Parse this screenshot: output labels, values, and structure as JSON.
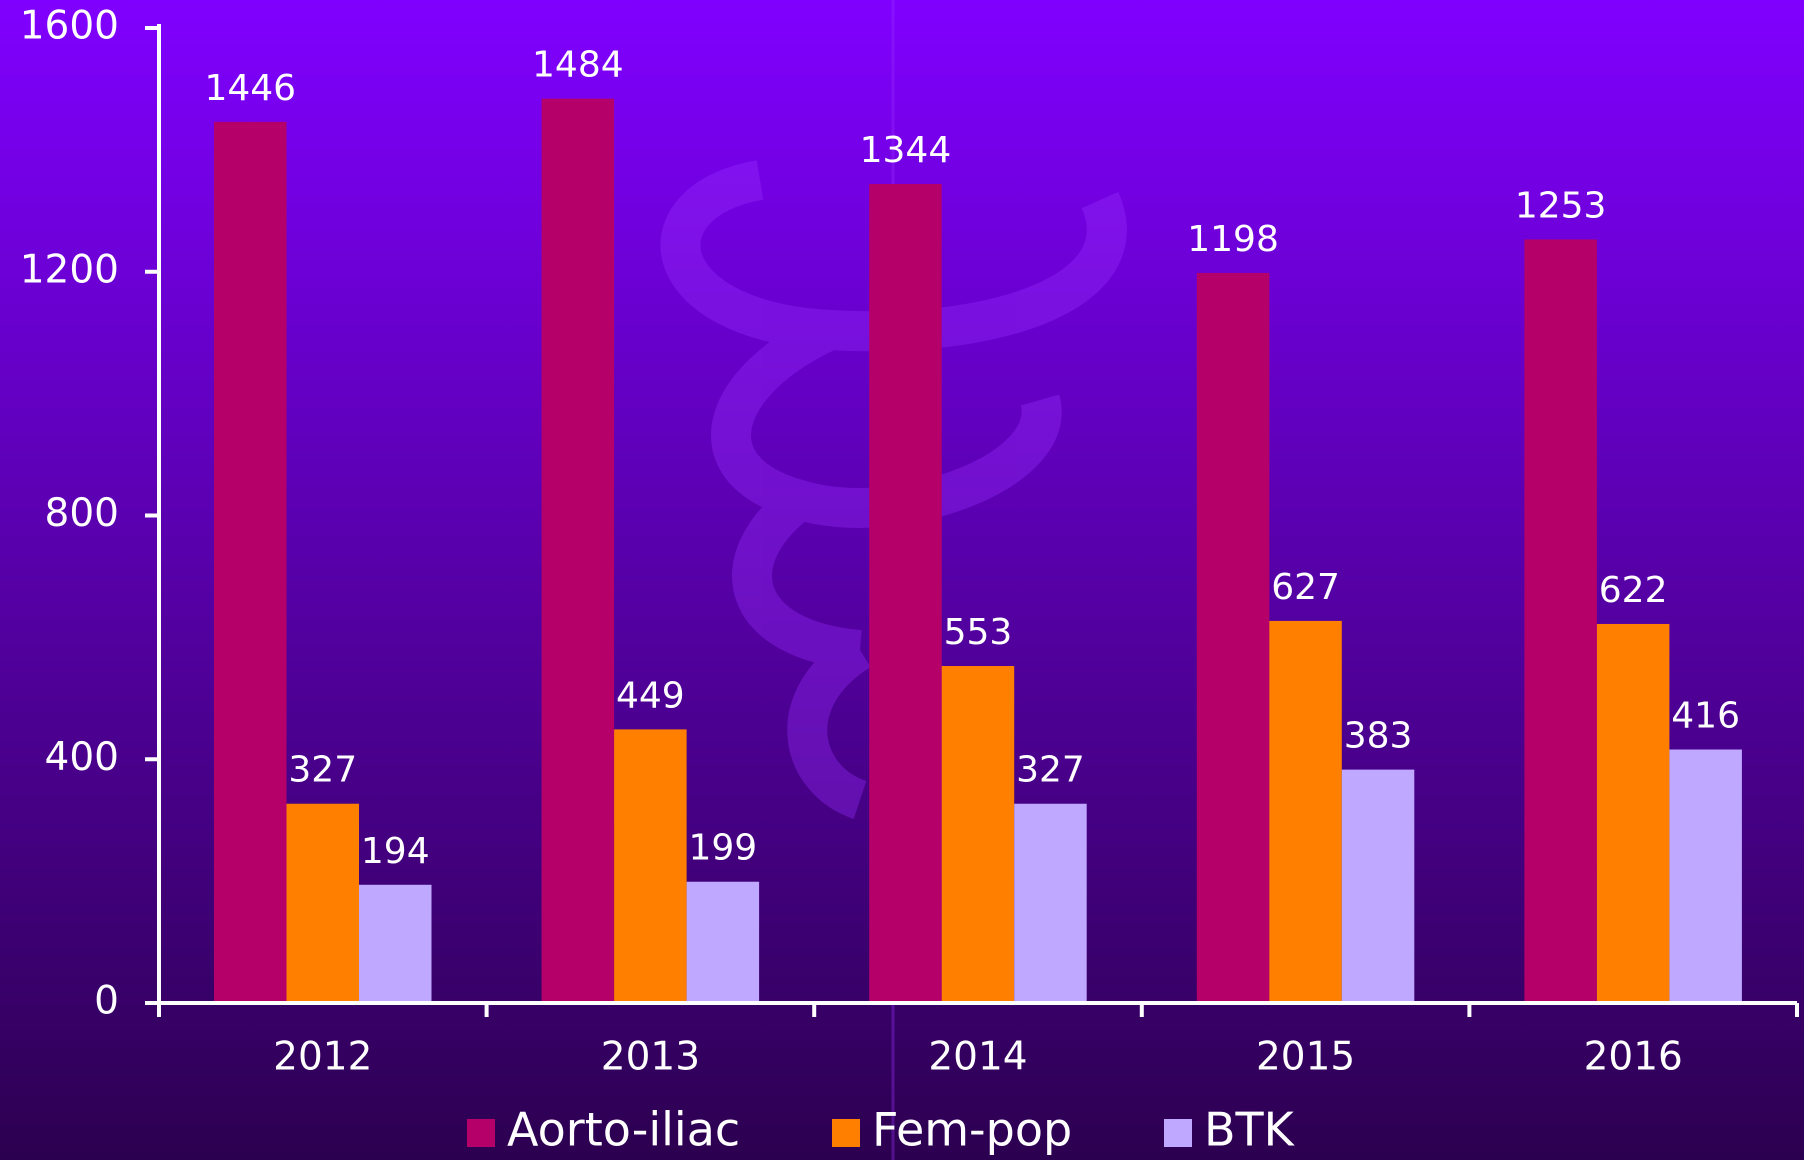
{
  "chart_data": {
    "type": "bar",
    "categories": [
      "2012",
      "2013",
      "2014",
      "2015",
      "2016"
    ],
    "series": [
      {
        "name": "Aorto-iliac",
        "color": "#b5006a",
        "values": [
          1446,
          1484,
          1344,
          1198,
          1253
        ]
      },
      {
        "name": "Fem-pop",
        "color": "#ff7f00",
        "values": [
          327,
          449,
          553,
          627,
          622
        ]
      },
      {
        "name": "BTK",
        "color": "#bfa8ff",
        "values": [
          194,
          199,
          327,
          383,
          416
        ]
      }
    ],
    "ylim": [
      0,
      1600
    ],
    "yticks": [
      0,
      400,
      800,
      1200,
      1600
    ],
    "grid": false
  }
}
